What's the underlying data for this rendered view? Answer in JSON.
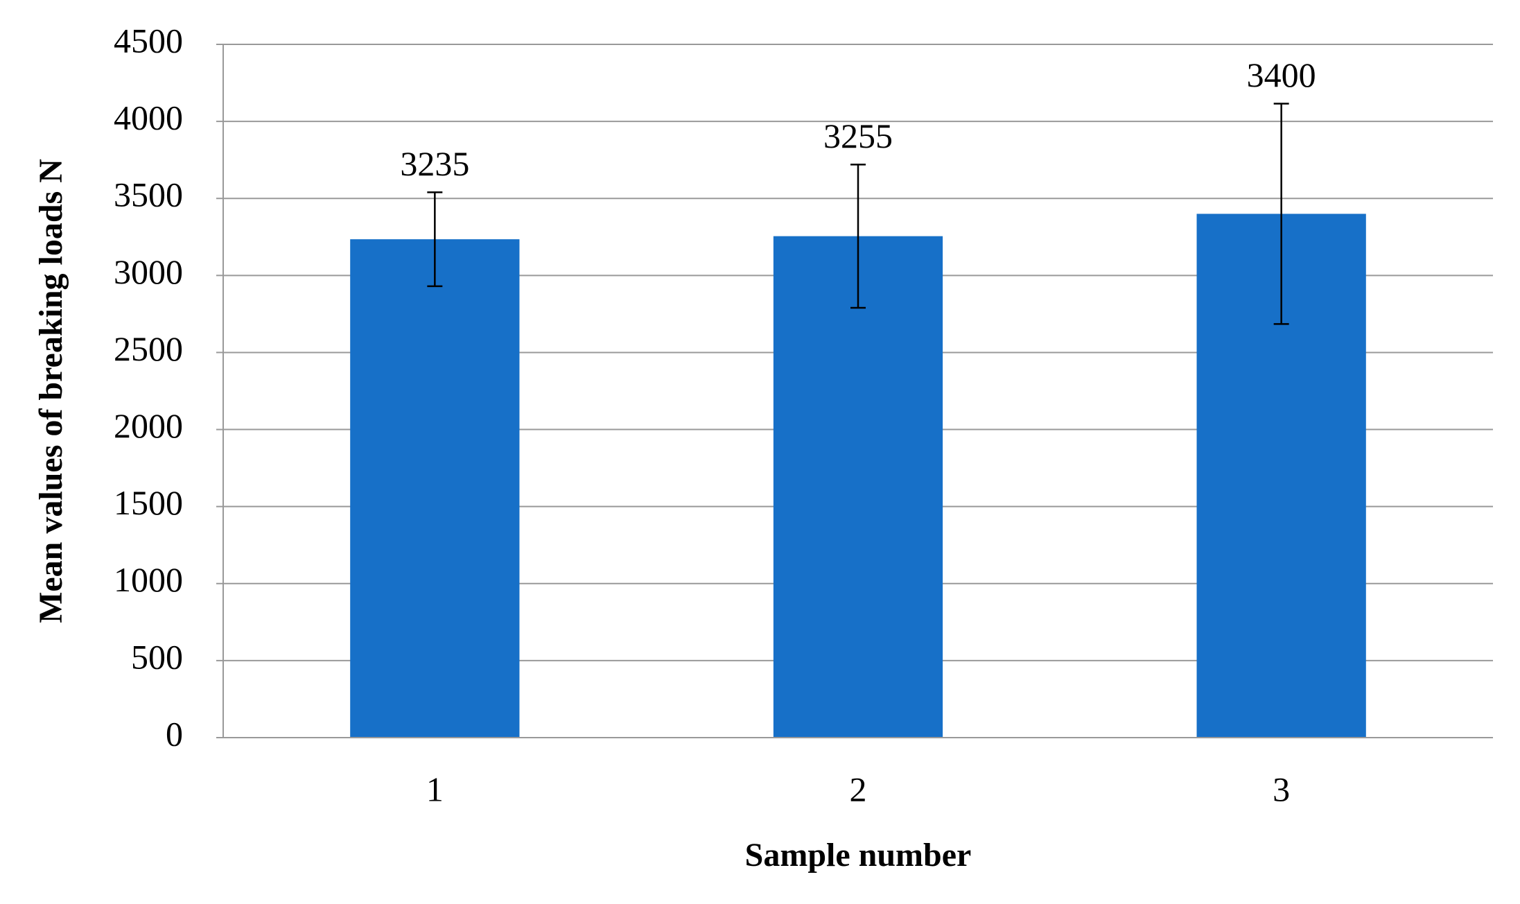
{
  "chart_data": {
    "type": "bar",
    "x_label": "Sample number",
    "y_label": "Mean values of breaking loads N",
    "categories": [
      "1",
      "2",
      "3"
    ],
    "values": [
      3235,
      3255,
      3400
    ],
    "errors": [
      305,
      465,
      715
    ],
    "color": "#1770c8",
    "ylim": [
      0,
      4500
    ],
    "yticks": [
      0,
      500,
      1000,
      1500,
      2000,
      2500,
      3000,
      3500,
      4000,
      4500
    ],
    "grid": true
  }
}
